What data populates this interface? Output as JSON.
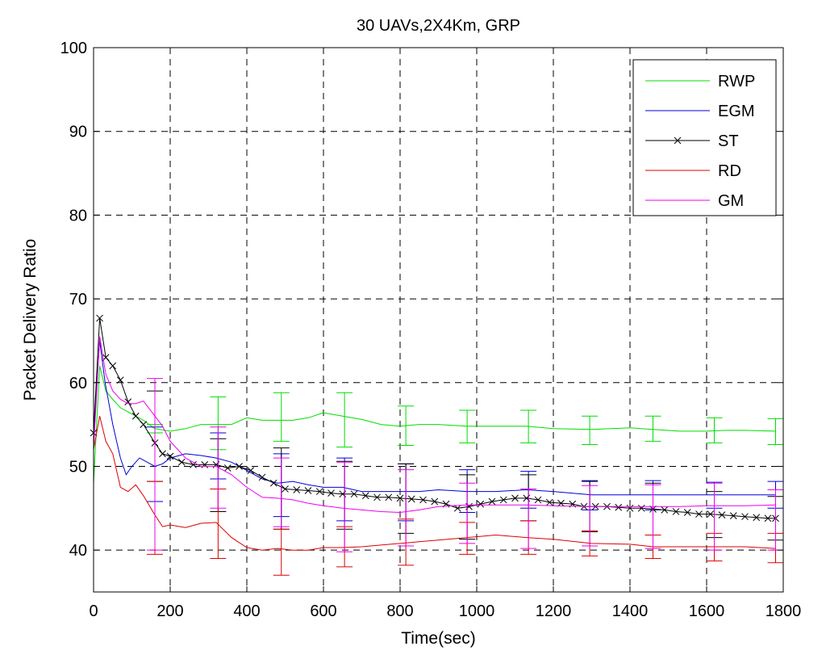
{
  "chart_data": {
    "type": "line",
    "title": "30 UAVs,2X4Km, GRP",
    "xlabel": "Time(sec)",
    "ylabel": "Packet Delivery Ratio",
    "xlim": [
      0,
      1800
    ],
    "ylim": [
      35,
      100
    ],
    "xticks": [
      "0",
      "200",
      "400",
      "600",
      "800",
      "1000",
      "1200",
      "1400",
      "1600",
      "1800"
    ],
    "yticks": [
      "40",
      "50",
      "60",
      "70",
      "80",
      "90",
      "100"
    ],
    "grid": true,
    "legend_position": "top-right",
    "series": [
      {
        "name": "RWP",
        "color": "#00dd00",
        "marker": "none",
        "x": [
          0,
          16,
          32,
          50,
          70,
          90,
          110,
          130,
          160,
          200,
          240,
          280,
          320,
          360,
          400,
          440,
          480,
          520,
          560,
          600,
          650,
          700,
          750,
          800,
          850,
          900,
          975,
          1050,
          1130,
          1200,
          1300,
          1400,
          1460,
          1530,
          1600,
          1650,
          1700,
          1780
        ],
        "y": [
          48,
          62,
          59,
          58,
          57,
          56.5,
          56,
          55.5,
          54.5,
          54.2,
          54.5,
          55,
          55,
          55,
          55.8,
          55.5,
          55.5,
          55.5,
          55.8,
          56.4,
          56,
          55.6,
          55,
          54.8,
          55,
          55,
          54.8,
          54.8,
          54.8,
          54.5,
          54.4,
          54.6,
          54.4,
          54.2,
          54.2,
          54.3,
          54.3,
          54.2
        ],
        "errorbars": [
          {
            "x": 160,
            "low": 54,
            "high": 55
          },
          {
            "x": 325,
            "low": 52,
            "high": 58.3
          },
          {
            "x": 490,
            "low": 53,
            "high": 58.8
          },
          {
            "x": 655,
            "low": 52.3,
            "high": 58.8
          },
          {
            "x": 815,
            "low": 52.5,
            "high": 57.2
          },
          {
            "x": 975,
            "low": 52.8,
            "high": 56.7
          },
          {
            "x": 1135,
            "low": 52.8,
            "high": 56.7
          },
          {
            "x": 1295,
            "low": 52.6,
            "high": 56
          },
          {
            "x": 1460,
            "low": 53,
            "high": 56
          },
          {
            "x": 1620,
            "low": 52.8,
            "high": 55.8
          },
          {
            "x": 1780,
            "low": 52.6,
            "high": 55.7
          }
        ]
      },
      {
        "name": "EGM",
        "color": "#0000dd",
        "marker": "none",
        "x": [
          0,
          16,
          30,
          50,
          70,
          85,
          100,
          120,
          140,
          160,
          180,
          200,
          240,
          280,
          320,
          360,
          400,
          440,
          480,
          520,
          560,
          600,
          650,
          700,
          750,
          800,
          850,
          900,
          975,
          1050,
          1130,
          1200,
          1300,
          1400,
          1460,
          1530,
          1600,
          1700,
          1780
        ],
        "y": [
          54,
          65,
          60,
          55,
          51,
          49,
          50,
          51,
          50.5,
          50,
          50.3,
          51,
          51.5,
          51.3,
          51,
          50.5,
          49.5,
          48.5,
          48,
          48.2,
          47.8,
          47.5,
          47.5,
          47,
          47,
          47,
          47,
          47.2,
          47,
          47,
          47.2,
          47,
          46.6,
          46.6,
          46.6,
          46.6,
          46.6,
          46.6,
          46.6
        ],
        "errorbars": [
          {
            "x": 160,
            "low": 45.8,
            "high": 54.7
          },
          {
            "x": 325,
            "low": 48.5,
            "high": 54
          },
          {
            "x": 490,
            "low": 44,
            "high": 51.5
          },
          {
            "x": 655,
            "low": 43.5,
            "high": 51
          },
          {
            "x": 815,
            "low": 43.5,
            "high": 50.3
          },
          {
            "x": 975,
            "low": 44.5,
            "high": 49.6
          },
          {
            "x": 1135,
            "low": 45,
            "high": 49.4
          },
          {
            "x": 1295,
            "low": 44.8,
            "high": 48.3
          },
          {
            "x": 1460,
            "low": 44.8,
            "high": 48.3
          },
          {
            "x": 1620,
            "low": 45,
            "high": 48.1
          },
          {
            "x": 1780,
            "low": 45,
            "high": 48.2
          }
        ]
      },
      {
        "name": "ST",
        "color": "#000000",
        "marker": "x",
        "x": [
          0,
          16,
          32,
          50,
          70,
          90,
          110,
          130,
          160,
          180,
          200,
          230,
          260,
          290,
          320,
          350,
          380,
          410,
          440,
          470,
          500,
          530,
          560,
          590,
          620,
          650,
          680,
          710,
          740,
          770,
          800,
          830,
          860,
          890,
          920,
          950,
          980,
          1010,
          1040,
          1070,
          1100,
          1130,
          1160,
          1190,
          1220,
          1250,
          1280,
          1310,
          1340,
          1370,
          1400,
          1430,
          1460,
          1490,
          1520,
          1550,
          1580,
          1610,
          1640,
          1670,
          1700,
          1730,
          1760,
          1780
        ],
        "y": [
          54,
          67.7,
          63,
          62,
          60.3,
          57.7,
          56,
          55,
          52.8,
          51.5,
          51.2,
          50.5,
          50.2,
          50.2,
          50.2,
          49.8,
          50,
          49.5,
          48.7,
          48,
          47.3,
          47.2,
          47.1,
          47,
          46.8,
          46.7,
          46.7,
          46.5,
          46.3,
          46.3,
          46.2,
          46.1,
          46,
          45.8,
          45.5,
          45,
          45.2,
          45.5,
          45.8,
          46,
          46.2,
          46.2,
          46,
          45.7,
          45.6,
          45.5,
          45.2,
          45.2,
          45.2,
          45.1,
          45,
          45,
          44.9,
          44.8,
          44.6,
          44.5,
          44.3,
          44.3,
          44.2,
          44.1,
          44,
          43.9,
          43.8,
          43.8
        ],
        "errorbars": [
          {
            "x": 160,
            "low": 48.2,
            "high": 59
          },
          {
            "x": 325,
            "low": 44.6,
            "high": 53.3
          },
          {
            "x": 490,
            "low": 42.5,
            "high": 52.2
          },
          {
            "x": 655,
            "low": 42.5,
            "high": 50.6
          },
          {
            "x": 815,
            "low": 42,
            "high": 50.3
          },
          {
            "x": 975,
            "low": 41.3,
            "high": 49
          },
          {
            "x": 1135,
            "low": 43.5,
            "high": 49
          },
          {
            "x": 1295,
            "low": 42.2,
            "high": 48.2
          },
          {
            "x": 1460,
            "low": 41.8,
            "high": 48
          },
          {
            "x": 1620,
            "low": 41.5,
            "high": 47
          },
          {
            "x": 1780,
            "low": 41.2,
            "high": 46.4
          }
        ]
      },
      {
        "name": "RD",
        "color": "#dd0000",
        "marker": "none",
        "x": [
          0,
          16,
          32,
          50,
          70,
          90,
          110,
          130,
          160,
          180,
          200,
          240,
          280,
          320,
          360,
          400,
          440,
          480,
          520,
          560,
          600,
          650,
          700,
          750,
          800,
          850,
          900,
          975,
          1050,
          1130,
          1200,
          1300,
          1400,
          1460,
          1530,
          1600,
          1700,
          1780
        ],
        "y": [
          52,
          56,
          53,
          51.5,
          47.5,
          47,
          47.8,
          46.5,
          44.2,
          42.8,
          43,
          42.7,
          43.2,
          43.3,
          41.5,
          40.3,
          40,
          40.2,
          40,
          40,
          40.3,
          40.3,
          40.4,
          40.6,
          40.8,
          41,
          41.2,
          41.5,
          41.8,
          41.5,
          41.3,
          40.8,
          40.7,
          40.4,
          40.4,
          40.4,
          40.4,
          40.2
        ],
        "errorbars": [
          {
            "x": 160,
            "low": 39.5,
            "high": 48.2
          },
          {
            "x": 325,
            "low": 39,
            "high": 47.3
          },
          {
            "x": 490,
            "low": 37,
            "high": 42.5
          },
          {
            "x": 655,
            "low": 38,
            "high": 42.8
          },
          {
            "x": 815,
            "low": 38.2,
            "high": 43.7
          },
          {
            "x": 975,
            "low": 39.5,
            "high": 43.3
          },
          {
            "x": 1135,
            "low": 39.5,
            "high": 43.5
          },
          {
            "x": 1295,
            "low": 39.3,
            "high": 42.3
          },
          {
            "x": 1460,
            "low": 39,
            "high": 41.8
          },
          {
            "x": 1620,
            "low": 38.7,
            "high": 42
          },
          {
            "x": 1780,
            "low": 38.5,
            "high": 42
          }
        ]
      },
      {
        "name": "GM",
        "color": "#ee00ee",
        "marker": "none",
        "x": [
          0,
          16,
          32,
          50,
          70,
          90,
          110,
          130,
          160,
          180,
          200,
          240,
          280,
          320,
          360,
          400,
          440,
          480,
          520,
          560,
          600,
          650,
          700,
          750,
          800,
          850,
          900,
          975,
          1050,
          1130,
          1200,
          1300,
          1400,
          1460,
          1530,
          1600,
          1700,
          1780
        ],
        "y": [
          52,
          65.5,
          61,
          59,
          58,
          57.5,
          57.5,
          57.8,
          56,
          54.8,
          53,
          51,
          50,
          50,
          49,
          47.5,
          46.3,
          46.2,
          46,
          45.6,
          45.3,
          45,
          44.8,
          44.6,
          44.5,
          44.8,
          45.2,
          45.4,
          45.4,
          45.4,
          45.3,
          45.2,
          45.2,
          45.2,
          45.2,
          45.3,
          45.3,
          45.4
        ],
        "errorbars": [
          {
            "x": 160,
            "low": 40,
            "high": 60.5
          },
          {
            "x": 325,
            "low": 45,
            "high": 54.7
          },
          {
            "x": 490,
            "low": 42.8,
            "high": 51
          },
          {
            "x": 655,
            "low": 39.8,
            "high": 50.5
          },
          {
            "x": 815,
            "low": 40.5,
            "high": 49.6
          },
          {
            "x": 975,
            "low": 40.8,
            "high": 48
          },
          {
            "x": 1135,
            "low": 40.2,
            "high": 47.3
          },
          {
            "x": 1295,
            "low": 40.5,
            "high": 47.7
          },
          {
            "x": 1460,
            "low": 40.2,
            "high": 47.8
          },
          {
            "x": 1620,
            "low": 40,
            "high": 48
          },
          {
            "x": 1780,
            "low": 40,
            "high": 47.2
          }
        ]
      }
    ]
  }
}
